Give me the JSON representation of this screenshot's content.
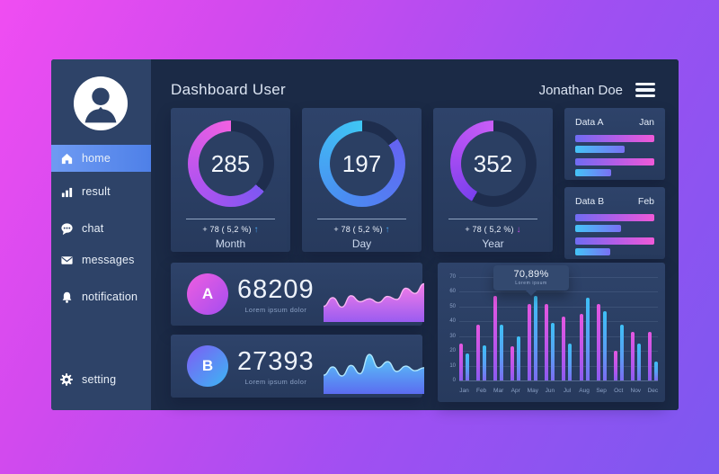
{
  "header": {
    "title": "Dashboard User",
    "user_name": "Jonathan Doe"
  },
  "sidebar": {
    "items": [
      {
        "label": "home",
        "icon": "home-icon",
        "active": true
      },
      {
        "label": "result",
        "icon": "bar-chart-icon",
        "active": false
      },
      {
        "label": "chat",
        "icon": "chat-icon",
        "active": false
      },
      {
        "label": "messages",
        "icon": "envelope-icon",
        "active": false
      },
      {
        "label": "notification",
        "icon": "bell-icon",
        "active": false
      },
      {
        "label": "setting",
        "icon": "gear-icon",
        "active": false
      }
    ]
  },
  "gauges": [
    {
      "value": "285",
      "delta": "+ 78 ( 5,2 %)",
      "arrow": "↑",
      "trend": "up",
      "label": "Month",
      "gap_deg": 130,
      "arc_colors": [
        "#7e57f2",
        "#b553ef",
        "#f161e2"
      ],
      "trend_color": "#49a7f2"
    },
    {
      "value": "197",
      "delta": "+ 78 ( 5,2 %)",
      "arrow": "↑",
      "trend": "up",
      "label": "Day",
      "gap_deg": 55,
      "arc_colors": [
        "#6463f2",
        "#4a8df2",
        "#3fc6f4"
      ],
      "trend_color": "#49a7f2"
    },
    {
      "value": "352",
      "delta": "+ 78 ( 5,2 %)",
      "arrow": "↓",
      "trend": "down",
      "label": "Year",
      "gap_deg": 210,
      "arc_colors": [
        "#7a40ee",
        "#a84cf2",
        "#c95ef6"
      ],
      "trend_color": "#c44fe8"
    }
  ],
  "data_cards": [
    {
      "title": "Data A",
      "period": "Jan",
      "bar_groups": [
        {
          "primary": 100,
          "secondary": 62
        },
        {
          "primary": 100,
          "secondary": 46
        }
      ]
    },
    {
      "title": "Data B",
      "period": "Feb",
      "bar_groups": [
        {
          "primary": 100,
          "secondary": 58
        },
        {
          "primary": 100,
          "secondary": 44
        }
      ]
    }
  ],
  "stat_rows": [
    {
      "badge": "A",
      "value": "68209",
      "caption": "Lorem ipsum dolor",
      "theme": "pink",
      "spark": [
        32,
        55,
        30,
        60,
        44,
        52,
        42,
        58,
        50,
        80,
        66,
        92
      ]
    },
    {
      "badge": "B",
      "value": "27393",
      "caption": "Lorem ipsum dolor",
      "theme": "blue",
      "spark": [
        40,
        62,
        38,
        66,
        44,
        95,
        60,
        76,
        50,
        64,
        52,
        60
      ]
    }
  ],
  "chart_data": {
    "type": "bar",
    "title": "",
    "categories": [
      "Jan",
      "Feb",
      "Mar",
      "Apr",
      "May",
      "Jun",
      "Jul",
      "Aug",
      "Sep",
      "Oct",
      "Nov",
      "Dec"
    ],
    "series": [
      {
        "name": "Data A",
        "color": "#d553e0",
        "values": [
          25,
          38,
          57,
          23,
          52,
          52,
          43,
          45,
          52,
          20,
          33,
          33
        ]
      },
      {
        "name": "Data B",
        "color": "#45aef5",
        "values": [
          18,
          24,
          38,
          30,
          57,
          39,
          25,
          56,
          47,
          38,
          25,
          13
        ]
      }
    ],
    "ylim": [
      0,
      70
    ],
    "ytick_step": 10,
    "grid": true,
    "legend": false,
    "tooltip": {
      "value": "70,89%",
      "caption": "Lorem ipsum",
      "target_category": "May"
    }
  },
  "colors": {
    "background_start": "#f04df2",
    "background_end": "#7c58f0",
    "panel": "#1b2a46",
    "sidebar": "#2e4368",
    "card": "#2b3f63",
    "active_item": "#5b8ceb",
    "accent_pink": "#e557e0",
    "accent_blue": "#3ec0f6",
    "ring_track": "#1e2d4d"
  }
}
